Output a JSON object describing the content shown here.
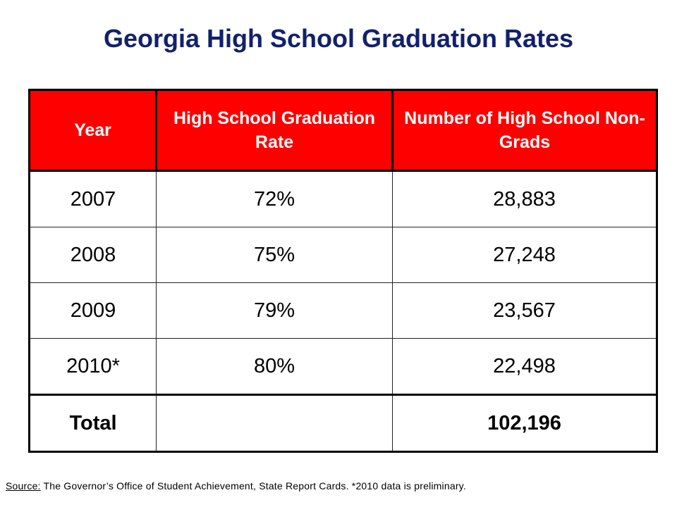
{
  "title": "Georgia High School Graduation Rates",
  "table": {
    "headers": [
      "Year",
      "High School Graduation Rate",
      "Number of High School Non-Grads"
    ],
    "rows": [
      [
        "2007",
        "72%",
        "28,883"
      ],
      [
        "2008",
        "75%",
        "27,248"
      ],
      [
        "2009",
        "79%",
        "23,567"
      ],
      [
        "2010*",
        "80%",
        "22,498"
      ]
    ],
    "total": {
      "label": "Total",
      "rate": "",
      "non_grads": "102,196"
    }
  },
  "source": {
    "label": "Source:",
    "text": " The Governor’s Office of Student Achievement, State Report Cards. *2010 data is preliminary."
  }
}
